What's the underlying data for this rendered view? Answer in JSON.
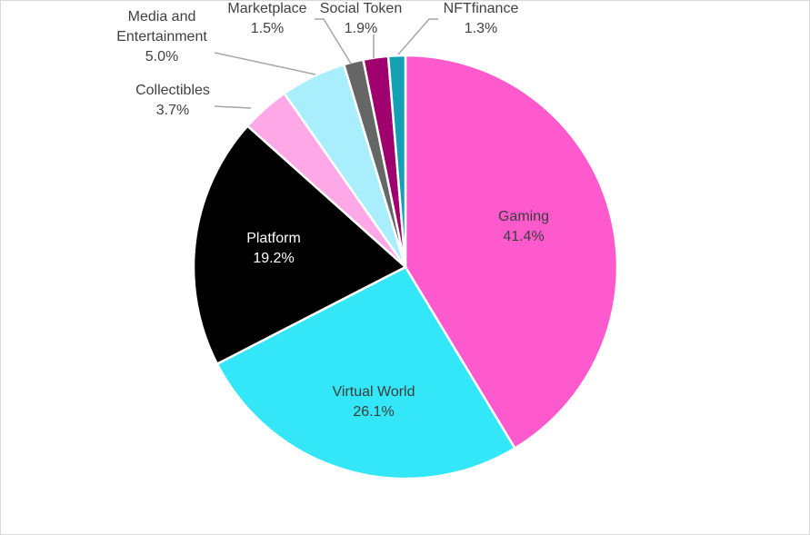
{
  "chart_data": {
    "type": "pie",
    "title": "",
    "start_angle_deg": 0,
    "direction": "clockwise",
    "slices": [
      {
        "label": "Gaming",
        "value": 41.4,
        "pct_label": "41.4%",
        "color": "#FF5ACD",
        "text_color": "#3c3c3c",
        "label_lines": [
          "Gaming"
        ]
      },
      {
        "label": "Virtual World",
        "value": 26.1,
        "pct_label": "26.1%",
        "color": "#33E6F8",
        "text_color": "#3c3c3c",
        "label_lines": [
          "Virtual World"
        ]
      },
      {
        "label": "Platform",
        "value": 19.2,
        "pct_label": "19.2%",
        "color": "#000000",
        "text_color": "#ffffff",
        "label_lines": [
          "Platform"
        ]
      },
      {
        "label": "Collectibles",
        "value": 3.7,
        "pct_label": "3.7%",
        "color": "#FFA8E8",
        "text_color": "#404040",
        "label_lines": [
          "Collectibles"
        ]
      },
      {
        "label": "Media and Entertainment",
        "value": 5.0,
        "pct_label": "5.0%",
        "color": "#A8EEFC",
        "text_color": "#404040",
        "label_lines": [
          "Media and",
          "Entertainment"
        ]
      },
      {
        "label": "Marketplace",
        "value": 1.5,
        "pct_label": "1.5%",
        "color": "#666666",
        "text_color": "#404040",
        "label_lines": [
          "Marketplace"
        ]
      },
      {
        "label": "Social Token",
        "value": 1.9,
        "pct_label": "1.9%",
        "color": "#A0006E",
        "text_color": "#404040",
        "label_lines": [
          "Social Token"
        ]
      },
      {
        "label": "NFTfinance",
        "value": 1.3,
        "pct_label": "1.3%",
        "color": "#14A0B4",
        "text_color": "#404040",
        "label_lines": [
          "NFTfinance"
        ]
      }
    ]
  }
}
